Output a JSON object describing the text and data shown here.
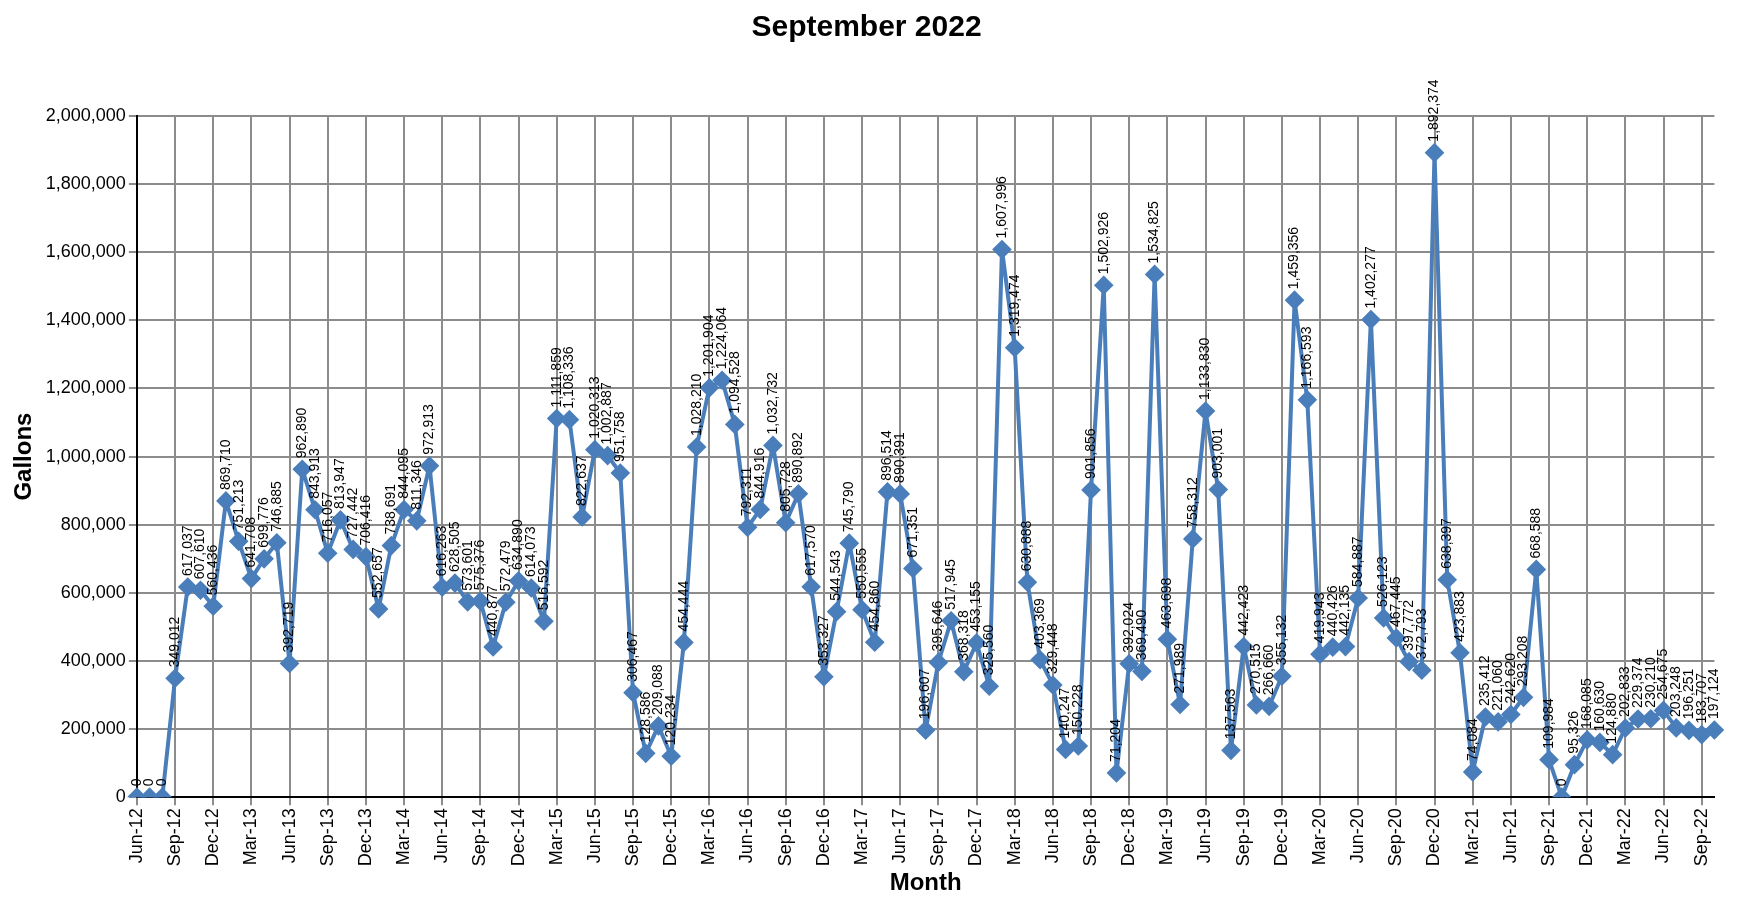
{
  "chart_data": {
    "type": "line",
    "title": "September 2022",
    "xlabel": "Month",
    "ylabel": "Gallons",
    "categories": [
      "Jun-12",
      null,
      null,
      "Sep-12",
      null,
      null,
      "Dec-12",
      null,
      null,
      "Mar-13",
      null,
      null,
      "Jun-13",
      null,
      null,
      "Sep-13",
      null,
      null,
      "Dec-13",
      null,
      null,
      "Mar-14",
      null,
      null,
      "Jun-14",
      null,
      null,
      "Sep-14",
      null,
      null,
      "Dec-14",
      null,
      null,
      "Mar-15",
      null,
      null,
      "Jun-15",
      null,
      null,
      "Sep-15",
      null,
      null,
      "Dec-15",
      null,
      null,
      "Mar-16",
      null,
      null,
      "Jun-16",
      null,
      null,
      "Sep-16",
      null,
      null,
      "Dec-16",
      null,
      null,
      "Mar-17",
      null,
      null,
      "Jun-17",
      null,
      null,
      "Sep-17",
      null,
      null,
      "Dec-17",
      null,
      null,
      "Mar-18",
      null,
      null,
      "Jun-18",
      null,
      null,
      "Sep-18",
      null,
      null,
      "Dec-18",
      null,
      null,
      "Mar-19",
      null,
      null,
      "Jun-19",
      null,
      null,
      "Sep-19",
      null,
      null,
      "Dec-19",
      null,
      null,
      "Mar-20",
      null,
      null,
      "Jun-20",
      null,
      null,
      "Sep-20",
      null,
      null,
      "Dec-20",
      null,
      null,
      "Mar-21",
      null,
      null,
      "Jun-21",
      null,
      null,
      "Sep-21",
      null,
      null,
      "Dec-21",
      null,
      null,
      "Mar-22",
      null,
      null,
      "Jun-22",
      null,
      null,
      "Sep-22",
      null
    ],
    "series": [
      {
        "color": "#4a7ebb",
        "value_labels": [
          "0",
          "0",
          "0",
          "349,012",
          "617,037",
          "607,610",
          "560,436",
          "869,710",
          "751,213",
          "641,708",
          "699,776",
          "746,885",
          "392,719",
          "962,890",
          "843,913",
          "716,057",
          "813,947",
          "727,442",
          "706,416",
          "552,657",
          "738,691",
          "844,095",
          "811,346",
          "972,913",
          "616,263",
          "628,505",
          "573,601",
          "575,376",
          "440,877",
          "572,479",
          "634,890",
          "614,073",
          "516,592",
          "1,111,859",
          "1,108,336",
          "822,637",
          "1,020,313",
          "1,002,887",
          "951,758",
          "306,467",
          "128,586",
          "209,088",
          "120,234",
          "454,444",
          "1,028,210",
          "1,201,904",
          "1,224,064",
          "1,094,528",
          "792,311",
          "844,916",
          "1,032,732",
          "805,728",
          "890,892",
          "617,570",
          "353,327",
          "544,543",
          "745,790",
          "550,555",
          "454,860",
          "896,514",
          "890,391",
          "671,351",
          "196,607",
          "395,646",
          "517,945",
          "368,318",
          "453,155",
          "325,560",
          "1,607,996",
          "1,319,474",
          "630,888",
          "403,369",
          "329,448",
          "140,247",
          "150,228",
          "901,856",
          "1,502,926",
          "71,204",
          "392,024",
          "369,490",
          "1,534,825",
          "463,698",
          "271,989",
          "758,312",
          "1,133,830",
          "903,001",
          "137,563",
          "442,423",
          "270,515",
          "266,660",
          "355,132",
          "1,459,356",
          "1,166,593",
          "419,943",
          "440,426",
          "442,135",
          "584,887",
          "1,402,277",
          "526,123",
          "467,445",
          "397,772",
          "372,793",
          "1,892,374",
          "638,397",
          "423,883",
          "74,084",
          "235,412",
          "221,060",
          "242,620",
          "293,208",
          "668,588",
          "109,984",
          "0",
          "95,326",
          "168,085",
          "160,630",
          "124,880",
          "202,833",
          "229,374",
          "230,210",
          "254,675",
          "203,248",
          "196,251",
          "183,707",
          "197,124"
        ],
        "values": [
          0,
          0,
          0,
          349012,
          617037,
          607610,
          560436,
          869710,
          751213,
          641708,
          699776,
          746885,
          392719,
          962890,
          843913,
          716057,
          813947,
          727442,
          706416,
          552657,
          738691,
          844095,
          811346,
          972913,
          616263,
          628505,
          573601,
          575376,
          440877,
          572479,
          634890,
          614073,
          516592,
          1111859,
          1108336,
          822637,
          1020313,
          1002887,
          951758,
          306467,
          128586,
          209088,
          120234,
          454444,
          1028210,
          1201904,
          1224064,
          1094528,
          792311,
          844916,
          1032732,
          805728,
          890892,
          617570,
          353327,
          544543,
          745790,
          550555,
          454860,
          896514,
          890391,
          671351,
          196607,
          395646,
          517945,
          368318,
          453155,
          325560,
          1607996,
          1319474,
          630888,
          403369,
          329448,
          140247,
          150228,
          901856,
          1502926,
          71204,
          392024,
          369490,
          1534825,
          463698,
          271989,
          758312,
          1133830,
          903001,
          137563,
          442423,
          270515,
          266660,
          355132,
          1459356,
          1166593,
          419943,
          440426,
          442135,
          584887,
          1402277,
          526123,
          467445,
          397772,
          372793,
          1892374,
          638397,
          423883,
          74084,
          235412,
          221060,
          242620,
          293208,
          668588,
          109984,
          0,
          95326,
          168085,
          160630,
          124880,
          202833,
          229374,
          230210,
          254675,
          203248,
          196251,
          183707,
          197124
        ]
      }
    ],
    "ylim": [
      0,
      2000000
    ],
    "yticks": [
      {
        "value": 0,
        "label": "0"
      },
      {
        "value": 200000,
        "label": "200,000"
      },
      {
        "value": 400000,
        "label": "400,000"
      },
      {
        "value": 600000,
        "label": "600,000"
      },
      {
        "value": 800000,
        "label": "800,000"
      },
      {
        "value": 1000000,
        "label": "1,000,000"
      },
      {
        "value": 1200000,
        "label": "1,200,000"
      },
      {
        "value": 1400000,
        "label": "1,400,000"
      },
      {
        "value": 1600000,
        "label": "1,600,000"
      },
      {
        "value": 1800000,
        "label": "1,800,000"
      },
      {
        "value": 2000000,
        "label": "2,000,000"
      }
    ],
    "grid": true,
    "marker": "diamond",
    "line_style": "solid",
    "legend": false
  }
}
